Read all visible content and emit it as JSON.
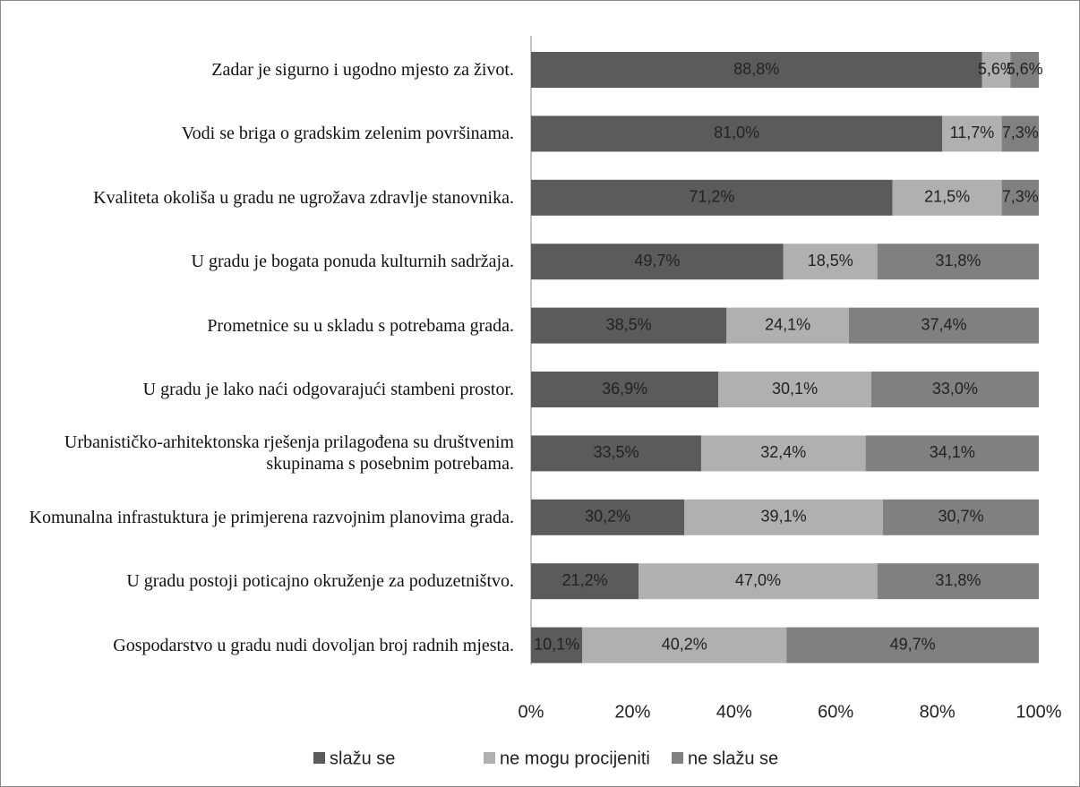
{
  "chart_data": {
    "type": "stacked_barh",
    "categories": [
      "Zadar je sigurno i ugodno mjesto za život.",
      "Vodi se briga o gradskim zelenim površinama.",
      "Kvaliteta okoliša u gradu ne ugrožava zdravlje stanovnika.",
      "U gradu je bogata ponuda kulturnih sadržaja.",
      "Prometnice su u skladu s potrebama grada.",
      "U gradu je lako naći odgovarajući stambeni prostor.",
      "Urbanističko-arhitektonska rješenja prilagođena su društvenim skupinama s posebnim potrebama.",
      "Komunalna infrastuktura je primjerena razvojnim planovima grada.",
      "U gradu postoji poticajno okruženje za poduzetništvo.",
      "Gospodarstvo u gradu nudi dovoljan broj radnih mjesta."
    ],
    "series": [
      {
        "name": "slažu se",
        "color": "#5b5b5b",
        "values": [
          88.8,
          81.0,
          71.2,
          49.7,
          38.5,
          36.9,
          33.5,
          30.2,
          21.2,
          10.1
        ],
        "value_labels": [
          "88,8%",
          "81,0%",
          "71,2%",
          "49,7%",
          "38,5%",
          "36,9%",
          "33,5%",
          "30,2%",
          "21,2%",
          "10,1%"
        ]
      },
      {
        "name": "ne mogu procijeniti",
        "color": "#b0b0b0",
        "values": [
          5.6,
          11.7,
          21.5,
          18.5,
          24.1,
          30.1,
          32.4,
          39.1,
          47.0,
          40.2
        ],
        "value_labels": [
          "5,6%",
          "11,7%",
          "21,5%",
          "18,5%",
          "24,1%",
          "30,1%",
          "32,4%",
          "39,1%",
          "47,0%",
          "40,2%"
        ]
      },
      {
        "name": "ne slažu se",
        "color": "#808080",
        "values": [
          5.6,
          7.3,
          7.3,
          31.8,
          37.4,
          33.0,
          34.1,
          30.7,
          31.8,
          49.7
        ],
        "value_labels": [
          "5,6%",
          "7,3%",
          "7,3%",
          "31,8%",
          "37,4%",
          "33,0%",
          "34,1%",
          "30,7%",
          "31,8%",
          "49,7%"
        ]
      }
    ],
    "xlim": [
      0,
      100
    ],
    "xticks": [
      {
        "value": 0,
        "label": "0%"
      },
      {
        "value": 20,
        "label": "20%"
      },
      {
        "value": 40,
        "label": "40%"
      },
      {
        "value": 60,
        "label": "60%"
      },
      {
        "value": 80,
        "label": "80%"
      },
      {
        "value": 100,
        "label": "100%"
      }
    ],
    "legend": "bottom"
  }
}
